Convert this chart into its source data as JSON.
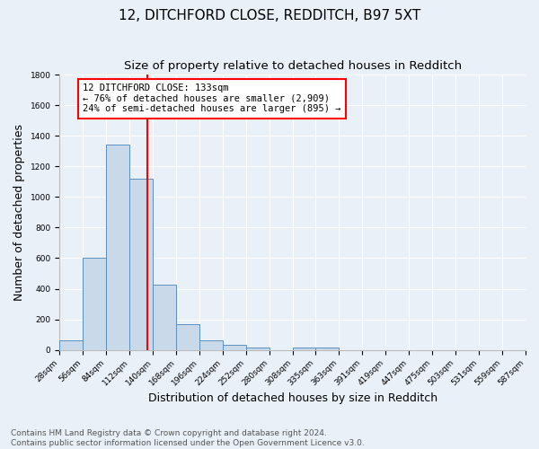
{
  "title1": "12, DITCHFORD CLOSE, REDDITCH, B97 5XT",
  "title2": "Size of property relative to detached houses in Redditch",
  "xlabel": "Distribution of detached houses by size in Redditch",
  "ylabel": "Number of detached properties",
  "footnote": "Contains HM Land Registry data © Crown copyright and database right 2024.\nContains public sector information licensed under the Open Government Licence v3.0.",
  "bin_labels": [
    "28sqm",
    "56sqm",
    "84sqm",
    "112sqm",
    "140sqm",
    "168sqm",
    "196sqm",
    "224sqm",
    "252sqm",
    "280sqm",
    "308sqm",
    "335sqm",
    "363sqm",
    "391sqm",
    "419sqm",
    "447sqm",
    "475sqm",
    "503sqm",
    "531sqm",
    "559sqm",
    "587sqm"
  ],
  "bar_values": [
    60,
    600,
    1340,
    1120,
    425,
    170,
    65,
    35,
    18,
    0,
    18,
    18,
    0,
    0,
    0,
    0,
    0,
    0,
    0,
    0
  ],
  "bin_edges": [
    28,
    56,
    84,
    112,
    140,
    168,
    196,
    224,
    252,
    280,
    308,
    335,
    363,
    391,
    419,
    447,
    475,
    503,
    531,
    559,
    587
  ],
  "bar_color": "#c9d9ea",
  "bar_edge_color": "#5a90c0",
  "vline_x": 133,
  "vline_color": "red",
  "annotation_text": "12 DITCHFORD CLOSE: 133sqm\n← 76% of detached houses are smaller (2,909)\n24% of semi-detached houses are larger (895) →",
  "annotation_box_color": "white",
  "annotation_box_edge": "red",
  "ylim": [
    0,
    1800
  ],
  "yticks": [
    0,
    200,
    400,
    600,
    800,
    1000,
    1200,
    1400,
    1600,
    1800
  ],
  "bg_color": "#eaf0f8",
  "grid_color": "white",
  "title1_fontsize": 11,
  "title2_fontsize": 9.5,
  "ylabel_fontsize": 9,
  "xlabel_fontsize": 9,
  "tick_fontsize": 6.5,
  "annotation_fontsize": 7.5,
  "footnote_fontsize": 6.5
}
